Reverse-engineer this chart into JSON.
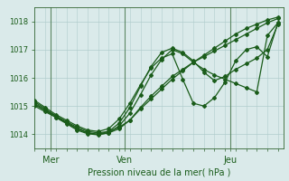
{
  "xlabel": "Pression niveau de la mer( hPa )",
  "ylim": [
    1013.5,
    1018.5
  ],
  "xlim": [
    0,
    47
  ],
  "yticks": [
    1014,
    1015,
    1016,
    1017,
    1018
  ],
  "xtick_positions": [
    3,
    17,
    37
  ],
  "xtick_labels": [
    "Mer",
    "Ven",
    "Jeu"
  ],
  "bg_color": "#daeaea",
  "grid_color": "#b0cccc",
  "line_color": "#1a5c1a",
  "vline_color": "#336633",
  "series": [
    {
      "x": [
        0,
        2,
        4,
        6,
        8,
        10,
        12,
        14,
        16,
        18,
        20,
        22,
        24,
        26,
        28,
        30,
        32,
        34,
        36,
        38,
        40,
        42,
        44,
        46
      ],
      "y": [
        1015.05,
        1014.85,
        1014.65,
        1014.45,
        1014.25,
        1014.1,
        1014.05,
        1014.1,
        1014.25,
        1014.5,
        1014.9,
        1015.25,
        1015.6,
        1015.95,
        1016.25,
        1016.55,
        1016.8,
        1017.05,
        1017.3,
        1017.55,
        1017.75,
        1017.9,
        1018.05,
        1018.15
      ]
    },
    {
      "x": [
        0,
        2,
        4,
        6,
        8,
        10,
        12,
        14,
        16,
        18,
        20,
        22,
        24,
        26,
        28,
        30,
        32,
        34,
        36,
        38,
        40,
        42,
        44,
        46
      ],
      "y": [
        1015.0,
        1014.8,
        1014.6,
        1014.4,
        1014.2,
        1014.05,
        1014.0,
        1014.05,
        1014.2,
        1014.5,
        1014.95,
        1015.35,
        1015.7,
        1016.05,
        1016.3,
        1016.55,
        1016.75,
        1016.95,
        1017.15,
        1017.35,
        1017.55,
        1017.75,
        1017.95,
        1018.1
      ]
    },
    {
      "x": [
        0,
        2,
        4,
        6,
        8,
        10,
        12,
        14,
        16,
        18,
        20,
        22,
        24,
        26,
        28,
        30,
        32,
        34,
        36,
        38,
        40,
        42,
        44,
        46
      ],
      "y": [
        1015.1,
        1014.85,
        1014.6,
        1014.38,
        1014.15,
        1014.02,
        1013.98,
        1014.05,
        1014.3,
        1014.75,
        1015.4,
        1016.1,
        1016.65,
        1017.0,
        1016.85,
        1016.55,
        1016.3,
        1016.1,
        1015.95,
        1015.8,
        1015.65,
        1015.5,
        1017.5,
        1017.95
      ]
    },
    {
      "x": [
        0,
        2,
        4,
        6,
        8,
        10,
        12,
        14,
        16,
        18,
        20,
        22,
        24,
        26,
        28,
        30,
        32,
        34,
        36,
        38,
        40,
        42,
        44,
        46
      ],
      "y": [
        1015.15,
        1014.9,
        1014.65,
        1014.42,
        1014.2,
        1014.05,
        1014.0,
        1014.1,
        1014.4,
        1014.95,
        1015.7,
        1016.4,
        1016.9,
        1017.05,
        1016.9,
        1016.6,
        1016.2,
        1015.9,
        1016.05,
        1016.3,
        1016.5,
        1016.7,
        1017.0,
        1017.9
      ]
    },
    {
      "x": [
        0,
        2,
        4,
        6,
        8,
        10,
        12,
        14,
        16,
        18,
        20,
        22,
        24,
        26,
        28,
        30,
        32,
        34,
        36,
        38,
        40,
        42,
        44,
        46
      ],
      "y": [
        1015.2,
        1014.95,
        1014.7,
        1014.5,
        1014.3,
        1014.15,
        1014.1,
        1014.2,
        1014.55,
        1015.1,
        1015.75,
        1016.35,
        1016.7,
        1016.85,
        1015.95,
        1015.1,
        1015.0,
        1015.3,
        1015.85,
        1016.6,
        1017.0,
        1017.1,
        1016.75,
        1017.95
      ]
    }
  ]
}
